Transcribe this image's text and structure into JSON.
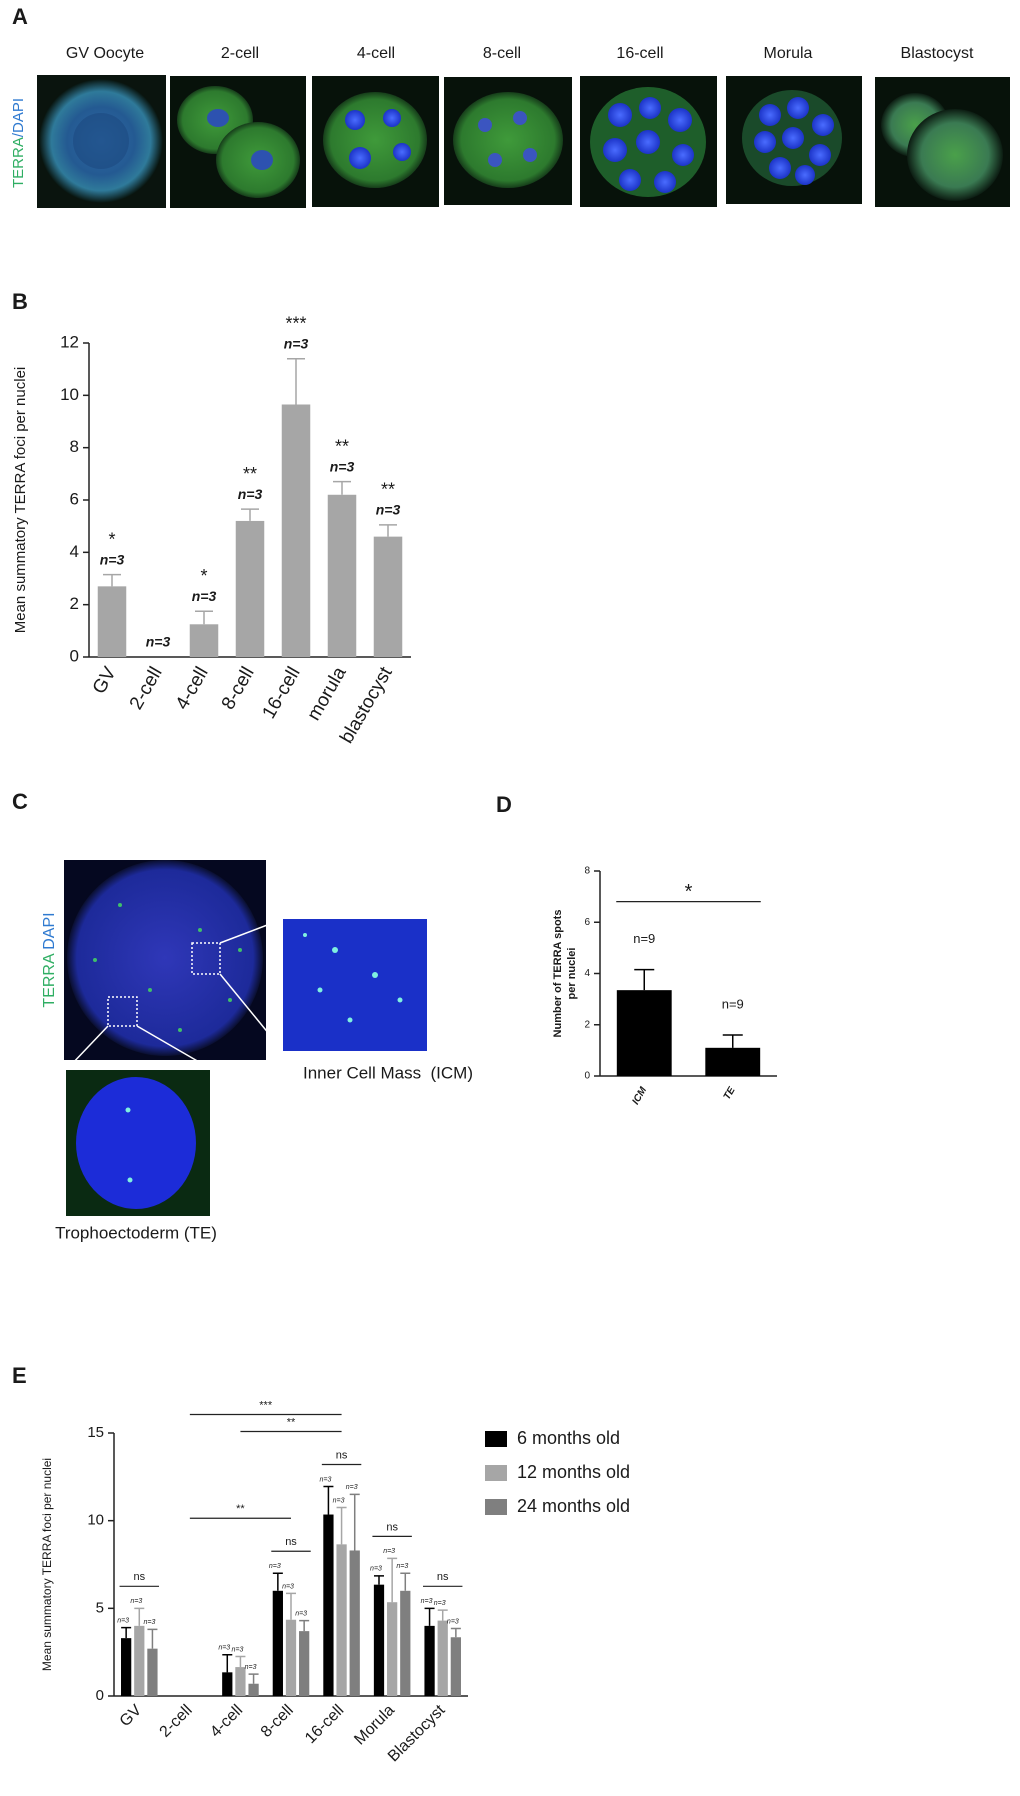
{
  "panel_labels": [
    "A",
    "B",
    "C",
    "D",
    "E"
  ],
  "figure_a": {
    "columns": [
      "GV Oocyte",
      "2-cell",
      "4-cell",
      "8-cell",
      "16-cell",
      "Morula",
      "Blastocyst"
    ],
    "stain": [
      "TERRA",
      "/DAPI"
    ]
  },
  "figure_c": {
    "stain": [
      "TERRA",
      "DAPI"
    ],
    "icm_caption": "Inner Cell Mass  (ICM)",
    "te_caption": "Trophoectoderm (TE)"
  },
  "chart_data": [
    {
      "type": "bar",
      "ylabel": "Mean summatory TERRA foci per nuclei",
      "categories": [
        "GV",
        "2-cell",
        "4-cell",
        "8-cell",
        "16-cell",
        "morula",
        "blastocyst"
      ],
      "values": [
        2.7,
        0,
        1.25,
        5.2,
        9.65,
        6.2,
        4.6
      ],
      "errors": [
        0.45,
        null,
        0.5,
        0.45,
        1.75,
        0.5,
        0.45
      ],
      "n_labels": [
        "n=3",
        "n=3",
        "n=3",
        "n=3",
        "n=3",
        "n=3",
        "n=3"
      ],
      "significance": [
        "*",
        null,
        "*",
        "**",
        "***",
        "**",
        "**"
      ],
      "color": "#a6a6a6",
      "ylim": [
        0,
        12
      ],
      "yticks": [
        0,
        2,
        4,
        6,
        8,
        10,
        12
      ]
    },
    {
      "type": "bar",
      "ylabel": [
        "Number of TERRA spots",
        "per nuclei"
      ],
      "categories": [
        "ICM",
        "TE"
      ],
      "values": [
        3.35,
        1.1
      ],
      "errors": [
        0.8,
        0.5
      ],
      "n_labels": [
        "n=9",
        "n=9"
      ],
      "comparisons": [
        {
          "label": "*",
          "from": "ICM",
          "to": "TE"
        }
      ],
      "color": "#000000",
      "ylim": [
        0,
        8
      ],
      "yticks": [
        0,
        2,
        4,
        6,
        8
      ]
    },
    {
      "type": "grouped_bar",
      "ylabel": "Mean summatory TERRA foci per nuclei",
      "categories": [
        "GV",
        "2-cell",
        "4-cell",
        "8-cell",
        "16-cell",
        "Morula",
        "Blastocyst"
      ],
      "series": [
        {
          "name": "6 months old",
          "color": "#000000",
          "values": [
            3.3,
            0,
            1.35,
            6.0,
            10.35,
            6.35,
            4.0
          ],
          "errors": [
            0.6,
            null,
            1.0,
            1.0,
            1.6,
            0.5,
            1.0
          ],
          "n_labels": [
            "n=3",
            null,
            "n=3",
            "n=3",
            "n=3",
            "n=3",
            "n=3"
          ]
        },
        {
          "name": "12 months old",
          "color": "#a6a6a6",
          "values": [
            4.0,
            0,
            1.65,
            4.35,
            8.65,
            5.35,
            4.3
          ],
          "errors": [
            1.0,
            null,
            0.6,
            1.5,
            2.1,
            2.5,
            0.6
          ],
          "n_labels": [
            "n=3",
            null,
            "n=3",
            "n=3",
            "n=3",
            "n=3",
            "n=3"
          ]
        },
        {
          "name": "24 months old",
          "color": "#7f7f7f",
          "values": [
            2.7,
            0,
            0.7,
            3.7,
            8.3,
            6.0,
            3.35
          ],
          "errors": [
            1.1,
            null,
            0.55,
            0.6,
            3.2,
            1.0,
            0.5
          ],
          "n_labels": [
            "n=3",
            null,
            "n=3",
            "n=3",
            "n=3",
            "n=3",
            "n=3"
          ]
        }
      ],
      "comparisons": [
        {
          "label": "ns",
          "from": "GV",
          "to": "GV"
        },
        {
          "label": "ns",
          "from": "8-cell",
          "to": "8-cell"
        },
        {
          "label": "ns",
          "from": "16-cell",
          "to": "16-cell"
        },
        {
          "label": "ns",
          "from": "Morula",
          "to": "Morula"
        },
        {
          "label": "ns",
          "from": "Blastocyst",
          "to": "Blastocyst"
        },
        {
          "label": "***",
          "from": "2-cell",
          "to": "16-cell"
        },
        {
          "label": "**",
          "from": "4-cell",
          "to": "16-cell"
        },
        {
          "label": "**",
          "from": "2-cell",
          "to": "8-cell"
        }
      ],
      "ylim": [
        0,
        15
      ],
      "yticks": [
        0,
        5,
        10,
        15
      ]
    }
  ]
}
